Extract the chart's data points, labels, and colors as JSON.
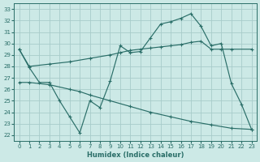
{
  "xlabel": "Humidex (Indice chaleur)",
  "bg_color": "#cce9e6",
  "grid_color": "#a8ccca",
  "line_color": "#2a6e68",
  "xlim": [
    -0.5,
    23.5
  ],
  "ylim": [
    21.5,
    33.5
  ],
  "xticks": [
    0,
    1,
    2,
    3,
    4,
    5,
    6,
    7,
    8,
    9,
    10,
    11,
    12,
    13,
    14,
    15,
    16,
    17,
    18,
    19,
    20,
    21,
    22,
    23
  ],
  "yticks": [
    22,
    23,
    24,
    25,
    26,
    27,
    28,
    29,
    30,
    31,
    32,
    33
  ],
  "line1_x": [
    0,
    1,
    3,
    5,
    7,
    9,
    10,
    11,
    12,
    13,
    14,
    15,
    16,
    17,
    18,
    19,
    20,
    21,
    23
  ],
  "line1_y": [
    29.5,
    28.0,
    28.2,
    28.4,
    28.7,
    29.0,
    29.2,
    29.4,
    29.5,
    29.6,
    29.7,
    29.8,
    29.9,
    30.1,
    30.2,
    29.5,
    29.5,
    29.5,
    29.5
  ],
  "line2_x": [
    0,
    1,
    2,
    3,
    4,
    5,
    6,
    7,
    8,
    9,
    10,
    11,
    12,
    13,
    14,
    15,
    16,
    17,
    18,
    19,
    20,
    21,
    22,
    23
  ],
  "line2_y": [
    29.5,
    27.9,
    26.6,
    26.6,
    25.0,
    23.6,
    22.2,
    25.0,
    24.4,
    26.7,
    29.8,
    29.2,
    29.3,
    30.5,
    31.7,
    31.9,
    32.2,
    32.6,
    31.5,
    29.8,
    30.0,
    26.5,
    24.7,
    22.5
  ],
  "line3_x": [
    0,
    1,
    3,
    5,
    6,
    7,
    9,
    11,
    13,
    15,
    17,
    19,
    21,
    23
  ],
  "line3_y": [
    26.6,
    26.6,
    26.4,
    26.0,
    25.8,
    25.5,
    25.0,
    24.5,
    24.0,
    23.6,
    23.2,
    22.9,
    22.6,
    22.5
  ],
  "figsize": [
    3.2,
    2.0
  ],
  "dpi": 100
}
